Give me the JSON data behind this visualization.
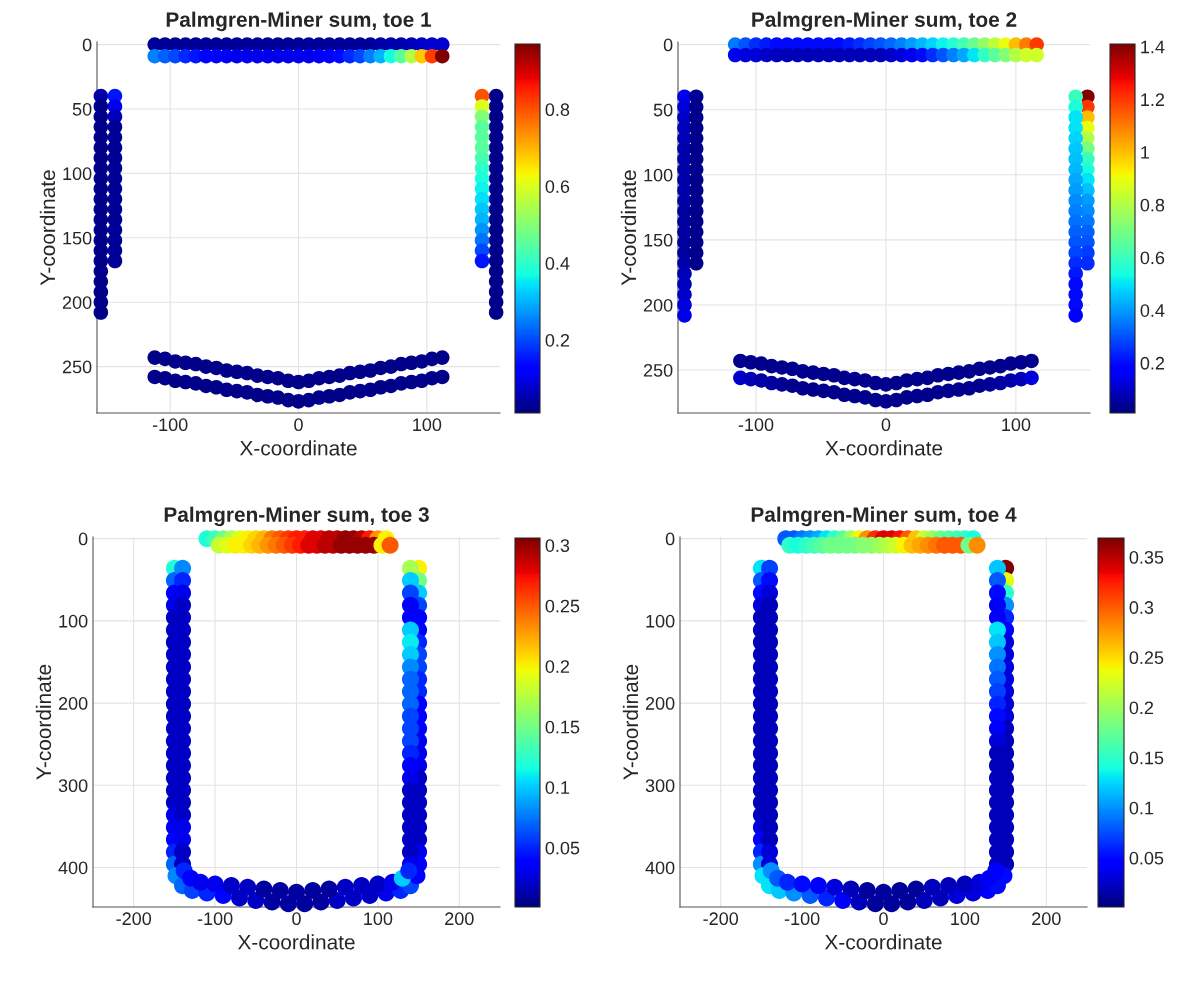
{
  "chart_data": [
    {
      "type": "scatter",
      "title": "Palmgren-Miner sum, toe 1",
      "xlabel": "X-coordinate",
      "ylabel": "Y-coordinate",
      "xlim": [
        -157,
        157
      ],
      "ylim": [
        286,
        -2
      ],
      "xticks": [
        -100,
        0,
        100
      ],
      "yticks": [
        0,
        50,
        100,
        150,
        200,
        250
      ],
      "clim": [
        0.01,
        0.97
      ],
      "cticks": [
        0.2,
        0.4,
        0.6,
        0.8
      ],
      "grid": true,
      "marker": "circle",
      "x": [
        -112,
        -104,
        -96,
        -88,
        -80,
        -72,
        -64,
        -56,
        -48,
        -40,
        -32,
        -24,
        -16,
        -8,
        0,
        8,
        16,
        24,
        32,
        40,
        48,
        56,
        64,
        72,
        80,
        88,
        96,
        104,
        112,
        -112,
        -104,
        -96,
        -88,
        -80,
        -72,
        -64,
        -56,
        -48,
        -40,
        -32,
        -24,
        -16,
        -8,
        0,
        8,
        16,
        24,
        32,
        40,
        48,
        56,
        64,
        72,
        80,
        88,
        96,
        104,
        112,
        -154,
        -154,
        -154,
        -154,
        -154,
        -154,
        -154,
        -154,
        -154,
        -154,
        -154,
        -154,
        -154,
        -154,
        -154,
        -154,
        -154,
        -154,
        -154,
        -154,
        -154,
        -154,
        -143,
        -143,
        -143,
        -143,
        -143,
        -143,
        -143,
        -143,
        -143,
        -143,
        -143,
        -143,
        -143,
        -143,
        -143,
        -143,
        -143,
        154,
        154,
        154,
        154,
        154,
        154,
        154,
        154,
        154,
        154,
        154,
        154,
        154,
        154,
        154,
        154,
        154,
        154,
        154,
        154,
        154,
        154,
        143,
        143,
        143,
        143,
        143,
        143,
        143,
        143,
        143,
        143,
        143,
        143,
        143,
        143,
        143,
        143,
        143,
        -112,
        -104,
        -96,
        -88,
        -80,
        -72,
        -64,
        -56,
        -48,
        -40,
        -32,
        -24,
        -16,
        -8,
        0,
        8,
        16,
        24,
        32,
        40,
        48,
        56,
        64,
        72,
        80,
        88,
        96,
        104,
        112,
        -112,
        -104,
        -96,
        -88,
        -80,
        -72,
        -64,
        -56,
        -48,
        -40,
        -32,
        -24,
        -16,
        -8,
        0,
        8,
        16,
        24,
        32,
        40,
        48,
        56,
        64,
        72,
        80,
        88,
        96,
        104,
        112
      ],
      "values": [
        0,
        0,
        0,
        0,
        0,
        0,
        0,
        0,
        0,
        0,
        0,
        0,
        0,
        0,
        0,
        0,
        0,
        0,
        0,
        0,
        0,
        0,
        0,
        0,
        0,
        0,
        0,
        0,
        0,
        9,
        9,
        9,
        9,
        9,
        9,
        9,
        9,
        9,
        9,
        9,
        9,
        9,
        9,
        9,
        9,
        9,
        9,
        9,
        9,
        9,
        9,
        9,
        9,
        9,
        9,
        9,
        9,
        9,
        40,
        48,
        56,
        64,
        72,
        80,
        88,
        96,
        104,
        112,
        120,
        128,
        136,
        144,
        152,
        160,
        168,
        176,
        184,
        192,
        200,
        208,
        40,
        48,
        56,
        64,
        72,
        80,
        88,
        96,
        104,
        112,
        120,
        128,
        136,
        144,
        152,
        160,
        168,
        40,
        48,
        56,
        64,
        72,
        80,
        88,
        96,
        104,
        112,
        120,
        128,
        136,
        144,
        152,
        160,
        168,
        176,
        184,
        192,
        200,
        208,
        40,
        48,
        56,
        64,
        72,
        80,
        88,
        96,
        104,
        112,
        120,
        128,
        136,
        144,
        152,
        160,
        168,
        243,
        244,
        246,
        247,
        248,
        250,
        251,
        253,
        254,
        255,
        257,
        258,
        259,
        261,
        262,
        261,
        259,
        258,
        257,
        255,
        254,
        253,
        251,
        250,
        248,
        247,
        246,
        244,
        243,
        258,
        259,
        261,
        262,
        263,
        265,
        266,
        268,
        269,
        270,
        272,
        273,
        274,
        276,
        277,
        276,
        274,
        273,
        272,
        270,
        269,
        268,
        266,
        265,
        263,
        262,
        261,
        259,
        258
      ],
      "cvalues": [
        0.03,
        0.03,
        0.03,
        0.03,
        0.03,
        0.03,
        0.03,
        0.03,
        0.03,
        0.03,
        0.03,
        0.03,
        0.03,
        0.03,
        0.03,
        0.03,
        0.03,
        0.03,
        0.03,
        0.03,
        0.03,
        0.03,
        0.04,
        0.05,
        0.05,
        0.06,
        0.07,
        0.08,
        0.08,
        0.25,
        0.22,
        0.2,
        0.17,
        0.15,
        0.13,
        0.12,
        0.11,
        0.1,
        0.1,
        0.1,
        0.1,
        0.1,
        0.1,
        0.1,
        0.1,
        0.11,
        0.12,
        0.14,
        0.17,
        0.2,
        0.25,
        0.3,
        0.37,
        0.45,
        0.55,
        0.68,
        0.82,
        0.97,
        0.04,
        0.02,
        0.02,
        0.02,
        0.02,
        0.02,
        0.02,
        0.02,
        0.02,
        0.02,
        0.02,
        0.02,
        0.02,
        0.02,
        0.02,
        0.02,
        0.02,
        0.02,
        0.02,
        0.02,
        0.02,
        0.02,
        0.15,
        0.1,
        0.06,
        0.03,
        0.03,
        0.03,
        0.03,
        0.03,
        0.03,
        0.03,
        0.03,
        0.03,
        0.03,
        0.03,
        0.03,
        0.03,
        0.03,
        0.02,
        0.02,
        0.02,
        0.02,
        0.02,
        0.02,
        0.02,
        0.02,
        0.02,
        0.02,
        0.02,
        0.02,
        0.02,
        0.02,
        0.02,
        0.02,
        0.02,
        0.02,
        0.02,
        0.02,
        0.02,
        0.02,
        0.8,
        0.6,
        0.5,
        0.45,
        0.45,
        0.45,
        0.43,
        0.4,
        0.38,
        0.36,
        0.34,
        0.32,
        0.3,
        0.27,
        0.24,
        0.2,
        0.15,
        0.02,
        0.02,
        0.02,
        0.02,
        0.02,
        0.02,
        0.02,
        0.02,
        0.02,
        0.02,
        0.02,
        0.02,
        0.02,
        0.02,
        0.02,
        0.02,
        0.02,
        0.02,
        0.02,
        0.02,
        0.02,
        0.02,
        0.02,
        0.02,
        0.02,
        0.02,
        0.02,
        0.02,
        0.02,
        0.02,
        0.02,
        0.02,
        0.02,
        0.02,
        0.02,
        0.02,
        0.02,
        0.02,
        0.02,
        0.02,
        0.02,
        0.02,
        0.02,
        0.02,
        0.02,
        0.02,
        0.02,
        0.02,
        0.02,
        0.02,
        0.02,
        0.02,
        0.02,
        0.02,
        0.02,
        0.02,
        0.02,
        0.02
      ]
    },
    {
      "type": "scatter",
      "title": "Palmgren-Miner sum, toe 2",
      "xlabel": "X-coordinate",
      "ylabel": "Y-coordinate",
      "xlim": [
        -160,
        157
      ],
      "ylim": [
        283,
        -2
      ],
      "xticks": [
        -100,
        0,
        100
      ],
      "yticks": [
        0,
        50,
        100,
        150,
        200,
        250
      ],
      "clim": [
        0.01,
        1.41
      ],
      "cticks": [
        0.2,
        0.4,
        0.6,
        0.8,
        1,
        1.2,
        1.4
      ],
      "grid": true,
      "marker": "circle",
      "x": [
        -116,
        -108,
        -100,
        -92,
        -84,
        -76,
        -68,
        -60,
        -52,
        -44,
        -36,
        -28,
        -20,
        -12,
        -4,
        4,
        12,
        20,
        28,
        36,
        44,
        52,
        60,
        68,
        76,
        84,
        92,
        100,
        108,
        116,
        -116,
        -108,
        -100,
        -92,
        -84,
        -76,
        -68,
        -60,
        -52,
        -44,
        -36,
        -28,
        -20,
        -12,
        -4,
        4,
        12,
        20,
        28,
        36,
        44,
        52,
        60,
        68,
        76,
        84,
        92,
        100,
        108,
        116,
        -155,
        -155,
        -155,
        -155,
        -155,
        -155,
        -155,
        -155,
        -155,
        -155,
        -155,
        -155,
        -155,
        -155,
        -155,
        -155,
        -155,
        -155,
        -155,
        -155,
        -155,
        -155,
        -146,
        -146,
        -146,
        -146,
        -146,
        -146,
        -146,
        -146,
        -146,
        -146,
        -146,
        -146,
        -146,
        -146,
        -146,
        -146,
        -146,
        155,
        155,
        155,
        155,
        155,
        155,
        155,
        155,
        155,
        155,
        155,
        155,
        155,
        155,
        155,
        155,
        155,
        146,
        146,
        146,
        146,
        146,
        146,
        146,
        146,
        146,
        146,
        146,
        146,
        146,
        146,
        146,
        146,
        146,
        146,
        146,
        146,
        146,
        146,
        -112,
        -104,
        -96,
        -88,
        -80,
        -72,
        -64,
        -56,
        -48,
        -40,
        -32,
        -24,
        -16,
        -8,
        0,
        8,
        16,
        24,
        32,
        40,
        48,
        56,
        64,
        72,
        80,
        88,
        96,
        104,
        112,
        -112,
        -104,
        -96,
        -88,
        -80,
        -72,
        -64,
        -56,
        -48,
        -40,
        -32,
        -24,
        -16,
        -8,
        0,
        8,
        16,
        24,
        32,
        40,
        48,
        56,
        64,
        72,
        80,
        88,
        96,
        104,
        112
      ],
      "values": [
        0,
        0,
        0,
        0,
        0,
        0,
        0,
        0,
        0,
        0,
        0,
        0,
        0,
        0,
        0,
        0,
        0,
        0,
        0,
        0,
        0,
        0,
        0,
        0,
        0,
        0,
        0,
        0,
        0,
        0,
        8,
        8,
        8,
        8,
        8,
        8,
        8,
        8,
        8,
        8,
        8,
        8,
        8,
        8,
        8,
        8,
        8,
        8,
        8,
        8,
        8,
        8,
        8,
        8,
        8,
        8,
        8,
        8,
        8,
        8,
        40,
        48,
        56,
        64,
        72,
        80,
        88,
        96,
        104,
        112,
        120,
        128,
        136,
        144,
        152,
        160,
        168,
        176,
        184,
        192,
        200,
        208,
        40,
        48,
        56,
        64,
        72,
        80,
        88,
        96,
        104,
        112,
        120,
        128,
        136,
        144,
        152,
        160,
        168,
        40,
        48,
        56,
        64,
        72,
        80,
        88,
        96,
        104,
        112,
        120,
        128,
        136,
        144,
        152,
        160,
        168,
        40,
        48,
        56,
        64,
        72,
        80,
        88,
        96,
        104,
        112,
        120,
        128,
        136,
        144,
        152,
        160,
        168,
        176,
        184,
        192,
        200,
        208,
        243,
        244,
        245,
        247,
        248,
        249,
        251,
        252,
        253,
        254,
        256,
        257,
        258,
        260,
        261,
        260,
        258,
        257,
        256,
        254,
        253,
        252,
        251,
        249,
        248,
        247,
        245,
        244,
        243,
        256,
        257,
        258,
        260,
        261,
        262,
        264,
        265,
        266,
        267,
        269,
        270,
        271,
        273,
        274,
        273,
        271,
        270,
        269,
        267,
        266,
        265,
        264,
        262,
        261,
        260,
        258,
        257,
        256
      ],
      "cvalues": [
        0.35,
        0.3,
        0.25,
        0.22,
        0.2,
        0.2,
        0.2,
        0.2,
        0.2,
        0.2,
        0.2,
        0.22,
        0.25,
        0.28,
        0.3,
        0.33,
        0.36,
        0.4,
        0.44,
        0.48,
        0.52,
        0.56,
        0.62,
        0.68,
        0.75,
        0.82,
        0.9,
        1.0,
        1.1,
        1.2,
        0.15,
        0.13,
        0.12,
        0.1,
        0.09,
        0.08,
        0.08,
        0.08,
        0.08,
        0.08,
        0.08,
        0.08,
        0.08,
        0.08,
        0.08,
        0.1,
        0.12,
        0.15,
        0.2,
        0.25,
        0.3,
        0.36,
        0.42,
        0.5,
        0.58,
        0.65,
        0.72,
        0.8,
        0.85,
        0.85,
        0.15,
        0.12,
        0.1,
        0.09,
        0.08,
        0.07,
        0.07,
        0.06,
        0.06,
        0.06,
        0.06,
        0.05,
        0.05,
        0.05,
        0.05,
        0.05,
        0.06,
        0.08,
        0.09,
        0.1,
        0.12,
        0.14,
        0.04,
        0.03,
        0.03,
        0.03,
        0.03,
        0.03,
        0.03,
        0.03,
        0.03,
        0.03,
        0.03,
        0.03,
        0.03,
        0.03,
        0.03,
        0.03,
        0.03,
        1.4,
        1.2,
        1.0,
        0.9,
        0.8,
        0.7,
        0.6,
        0.55,
        0.5,
        0.45,
        0.4,
        0.38,
        0.35,
        0.32,
        0.3,
        0.27,
        0.25,
        0.6,
        0.55,
        0.5,
        0.5,
        0.48,
        0.46,
        0.45,
        0.44,
        0.42,
        0.4,
        0.38,
        0.36,
        0.34,
        0.32,
        0.3,
        0.28,
        0.25,
        0.22,
        0.2,
        0.2,
        0.2,
        0.18,
        0.03,
        0.03,
        0.03,
        0.03,
        0.03,
        0.03,
        0.03,
        0.03,
        0.03,
        0.03,
        0.03,
        0.03,
        0.03,
        0.03,
        0.03,
        0.03,
        0.03,
        0.03,
        0.03,
        0.03,
        0.03,
        0.03,
        0.03,
        0.03,
        0.03,
        0.03,
        0.03,
        0.03,
        0.03,
        0.1,
        0.08,
        0.06,
        0.05,
        0.04,
        0.03,
        0.03,
        0.03,
        0.03,
        0.03,
        0.03,
        0.03,
        0.03,
        0.03,
        0.03,
        0.03,
        0.03,
        0.03,
        0.03,
        0.03,
        0.03,
        0.03,
        0.03,
        0.03,
        0.04,
        0.05,
        0.06,
        0.08,
        0.12
      ]
    },
    {
      "type": "scatter",
      "title": "Palmgren-Miner sum, toe 3",
      "xlabel": "X-coordinate",
      "ylabel": "Y-coordinate",
      "xlim": [
        -250,
        250
      ],
      "ylim": [
        448,
        -2
      ],
      "xticks": [
        -200,
        -100,
        0,
        100,
        200
      ],
      "yticks": [
        0,
        100,
        200,
        300,
        400
      ],
      "clim": [
        0.001,
        0.306
      ],
      "cticks": [
        0.05,
        0.1,
        0.15,
        0.2,
        0.25,
        0.3
      ],
      "grid": true,
      "marker": "circle",
      "x": [
        -150,
        -150,
        -150,
        -150,
        -150,
        -150,
        -150,
        -150,
        -150,
        -150,
        -150,
        -150,
        -150,
        -150,
        -150,
        -150,
        -150,
        -150,
        -150,
        -150,
        -150,
        -150,
        -150,
        -150,
        -150,
        -140,
        -140,
        -140,
        -140,
        -140,
        -140,
        -140,
        -140,
        -140,
        -140,
        -140,
        -140,
        -140,
        -140,
        -140,
        -140,
        -140,
        -140,
        -140,
        -140,
        -140,
        -140,
        -140,
        -140,
        -140,
        150,
        150,
        150,
        150,
        150,
        150,
        150,
        150,
        150,
        150,
        150,
        150,
        150,
        150,
        150,
        150,
        150,
        150,
        150,
        150,
        150,
        150,
        150,
        150,
        150,
        140,
        140,
        140,
        140,
        140,
        140,
        140,
        140,
        140,
        140,
        140,
        140,
        140,
        140,
        140,
        140,
        140,
        140,
        140,
        140,
        140,
        140,
        140,
        140,
        140,
        -148,
        -140,
        -128,
        -110,
        -90,
        -70,
        -50,
        -30,
        -10,
        10,
        30,
        50,
        70,
        90,
        110,
        128,
        140,
        148,
        -138,
        -130,
        -118,
        -100,
        -80,
        -60,
        -40,
        -20,
        0,
        20,
        40,
        60,
        80,
        100,
        118,
        130,
        138,
        -110,
        -100,
        -90,
        -80,
        -70,
        -60,
        -50,
        -40,
        -30,
        -20,
        -10,
        0,
        10,
        20,
        30,
        40,
        50,
        60,
        70,
        80,
        90,
        100,
        110,
        -95,
        -85,
        -75,
        -65,
        -55,
        -45,
        -35,
        -25,
        -15,
        -5,
        5,
        15,
        25,
        35,
        45,
        55,
        65,
        75,
        85,
        95,
        105,
        115
      ],
      "values": [
        36,
        51,
        66,
        81,
        96,
        111,
        126,
        141,
        156,
        171,
        186,
        201,
        216,
        231,
        246,
        261,
        276,
        291,
        306,
        321,
        336,
        351,
        366,
        381,
        396,
        36,
        51,
        66,
        81,
        96,
        111,
        126,
        141,
        156,
        171,
        186,
        201,
        216,
        231,
        246,
        261,
        276,
        291,
        306,
        321,
        336,
        351,
        366,
        381,
        396,
        36,
        51,
        66,
        81,
        96,
        111,
        126,
        141,
        156,
        171,
        186,
        201,
        216,
        231,
        246,
        261,
        276,
        291,
        306,
        321,
        336,
        351,
        366,
        381,
        396,
        36,
        51,
        66,
        81,
        96,
        111,
        126,
        141,
        156,
        171,
        186,
        201,
        216,
        231,
        246,
        261,
        276,
        291,
        306,
        321,
        336,
        351,
        366,
        381,
        396,
        410,
        422,
        428,
        431,
        434,
        437,
        440,
        442,
        444,
        444,
        442,
        440,
        437,
        434,
        431,
        428,
        422,
        410,
        404,
        413,
        418,
        420,
        422,
        424,
        426,
        428,
        430,
        428,
        426,
        424,
        422,
        420,
        418,
        413,
        404,
        0,
        0,
        0,
        0,
        0,
        0,
        0,
        0,
        0,
        0,
        0,
        0,
        0,
        0,
        0,
        0,
        0,
        0,
        0,
        0,
        0,
        0,
        0,
        8,
        8,
        8,
        8,
        8,
        8,
        8,
        8,
        8,
        8,
        8,
        8,
        8,
        8,
        8,
        8,
        8,
        8,
        8,
        8,
        8,
        8
      ],
      "cvalues": [
        0.12,
        0.07,
        0.04,
        0.03,
        0.02,
        0.02,
        0.02,
        0.02,
        0.02,
        0.02,
        0.02,
        0.02,
        0.02,
        0.02,
        0.02,
        0.02,
        0.02,
        0.02,
        0.02,
        0.02,
        0.03,
        0.03,
        0.04,
        0.05,
        0.07,
        0.08,
        0.05,
        0.03,
        0.02,
        0.02,
        0.02,
        0.02,
        0.02,
        0.02,
        0.02,
        0.02,
        0.02,
        0.02,
        0.02,
        0.02,
        0.02,
        0.02,
        0.02,
        0.02,
        0.02,
        0.02,
        0.03,
        0.03,
        0.02,
        0.02,
        0.2,
        0.15,
        0.1,
        0.06,
        0.04,
        0.04,
        0.05,
        0.06,
        0.06,
        0.05,
        0.05,
        0.04,
        0.04,
        0.04,
        0.03,
        0.03,
        0.03,
        0.02,
        0.02,
        0.02,
        0.02,
        0.02,
        0.02,
        0.03,
        0.04,
        0.17,
        0.1,
        0.06,
        0.04,
        0.04,
        0.1,
        0.11,
        0.1,
        0.08,
        0.07,
        0.07,
        0.07,
        0.06,
        0.06,
        0.06,
        0.05,
        0.04,
        0.03,
        0.02,
        0.02,
        0.02,
        0.02,
        0.02,
        0.02,
        0.03,
        0.08,
        0.07,
        0.06,
        0.05,
        0.04,
        0.02,
        0.02,
        0.01,
        0.01,
        0.01,
        0.01,
        0.02,
        0.02,
        0.02,
        0.03,
        0.05,
        0.06,
        0.04,
        0.05,
        0.04,
        0.03,
        0.03,
        0.02,
        0.02,
        0.01,
        0.01,
        0.01,
        0.01,
        0.01,
        0.02,
        0.02,
        0.02,
        0.03,
        0.1,
        0.05,
        0.12,
        0.13,
        0.15,
        0.17,
        0.19,
        0.2,
        0.21,
        0.22,
        0.24,
        0.25,
        0.26,
        0.27,
        0.27,
        0.28,
        0.28,
        0.29,
        0.29,
        0.3,
        0.3,
        0.29,
        0.27,
        0.23,
        0.2,
        0.18,
        0.19,
        0.2,
        0.2,
        0.21,
        0.22,
        0.23,
        0.24,
        0.25,
        0.26,
        0.27,
        0.28,
        0.28,
        0.29,
        0.29,
        0.3,
        0.3,
        0.3,
        0.3,
        0.3,
        0.2,
        0.25
      ]
    },
    {
      "type": "scatter",
      "title": "Palmgren-Miner sum, toe 4",
      "xlabel": "X-coordinate",
      "ylabel": "Y-coordinate",
      "xlim": [
        -250,
        250
      ],
      "ylim": [
        448,
        -2
      ],
      "xticks": [
        -200,
        -100,
        0,
        100,
        200
      ],
      "yticks": [
        0,
        100,
        200,
        300,
        400
      ],
      "clim": [
        0.001,
        0.369
      ],
      "cticks": [
        0.05,
        0.1,
        0.15,
        0.2,
        0.25,
        0.3,
        0.35
      ],
      "grid": true,
      "marker": "circle",
      "x": [
        -150,
        -150,
        -150,
        -150,
        -150,
        -150,
        -150,
        -150,
        -150,
        -150,
        -150,
        -150,
        -150,
        -150,
        -150,
        -150,
        -150,
        -150,
        -150,
        -150,
        -150,
        -150,
        -150,
        -150,
        -150,
        -140,
        -140,
        -140,
        -140,
        -140,
        -140,
        -140,
        -140,
        -140,
        -140,
        -140,
        -140,
        -140,
        -140,
        -140,
        -140,
        -140,
        -140,
        -140,
        -140,
        -140,
        -140,
        -140,
        -140,
        -140,
        150,
        150,
        150,
        150,
        150,
        150,
        150,
        150,
        150,
        150,
        150,
        150,
        150,
        150,
        150,
        150,
        150,
        150,
        150,
        150,
        150,
        150,
        150,
        150,
        150,
        140,
        140,
        140,
        140,
        140,
        140,
        140,
        140,
        140,
        140,
        140,
        140,
        140,
        140,
        140,
        140,
        140,
        140,
        140,
        140,
        140,
        140,
        140,
        140,
        140,
        -148,
        -140,
        -128,
        -110,
        -90,
        -70,
        -50,
        -30,
        -10,
        10,
        30,
        50,
        70,
        90,
        110,
        128,
        140,
        148,
        -138,
        -130,
        -118,
        -100,
        -80,
        -60,
        -40,
        -20,
        0,
        20,
        40,
        60,
        80,
        100,
        118,
        130,
        138,
        -120,
        -110,
        -100,
        -90,
        -80,
        -70,
        -60,
        -50,
        -40,
        -30,
        -20,
        -10,
        0,
        10,
        20,
        30,
        40,
        50,
        60,
        70,
        80,
        90,
        100,
        110,
        -115,
        -105,
        -95,
        -85,
        -75,
        -65,
        -55,
        -45,
        -35,
        -25,
        -15,
        -5,
        5,
        15,
        25,
        35,
        45,
        55,
        65,
        75,
        85,
        95,
        105,
        115
      ],
      "values": [
        36,
        51,
        66,
        81,
        96,
        111,
        126,
        141,
        156,
        171,
        186,
        201,
        216,
        231,
        246,
        261,
        276,
        291,
        306,
        321,
        336,
        351,
        366,
        381,
        396,
        36,
        51,
        66,
        81,
        96,
        111,
        126,
        141,
        156,
        171,
        186,
        201,
        216,
        231,
        246,
        261,
        276,
        291,
        306,
        321,
        336,
        351,
        366,
        381,
        396,
        36,
        51,
        66,
        81,
        96,
        111,
        126,
        141,
        156,
        171,
        186,
        201,
        216,
        231,
        246,
        261,
        276,
        291,
        306,
        321,
        336,
        351,
        366,
        381,
        396,
        36,
        51,
        66,
        81,
        96,
        111,
        126,
        141,
        156,
        171,
        186,
        201,
        216,
        231,
        246,
        261,
        276,
        291,
        306,
        321,
        336,
        351,
        366,
        381,
        396,
        410,
        422,
        428,
        431,
        434,
        437,
        440,
        442,
        444,
        444,
        442,
        440,
        437,
        434,
        431,
        428,
        422,
        410,
        404,
        413,
        418,
        420,
        422,
        424,
        426,
        428,
        430,
        428,
        426,
        424,
        422,
        420,
        418,
        413,
        404,
        0,
        0,
        0,
        0,
        0,
        0,
        0,
        0,
        0,
        0,
        0,
        0,
        0,
        0,
        0,
        0,
        0,
        0,
        0,
        0,
        0,
        0,
        0,
        0,
        8,
        8,
        8,
        8,
        8,
        8,
        8,
        8,
        8,
        8,
        8,
        8,
        8,
        8,
        8,
        8,
        8,
        8,
        8,
        8,
        8,
        8,
        8,
        8
      ],
      "cvalues": [
        0.13,
        0.08,
        0.05,
        0.03,
        0.02,
        0.02,
        0.02,
        0.02,
        0.02,
        0.02,
        0.02,
        0.02,
        0.02,
        0.02,
        0.02,
        0.02,
        0.02,
        0.02,
        0.02,
        0.02,
        0.02,
        0.03,
        0.04,
        0.06,
        0.1,
        0.07,
        0.05,
        0.03,
        0.02,
        0.02,
        0.02,
        0.02,
        0.02,
        0.02,
        0.02,
        0.02,
        0.02,
        0.02,
        0.02,
        0.02,
        0.02,
        0.02,
        0.02,
        0.02,
        0.02,
        0.02,
        0.02,
        0.02,
        0.03,
        0.03,
        0.37,
        0.23,
        0.15,
        0.1,
        0.06,
        0.04,
        0.03,
        0.03,
        0.03,
        0.03,
        0.03,
        0.03,
        0.03,
        0.02,
        0.02,
        0.02,
        0.02,
        0.02,
        0.02,
        0.02,
        0.02,
        0.02,
        0.02,
        0.02,
        0.02,
        0.12,
        0.08,
        0.05,
        0.04,
        0.04,
        0.13,
        0.12,
        0.1,
        0.09,
        0.08,
        0.07,
        0.06,
        0.05,
        0.04,
        0.03,
        0.02,
        0.02,
        0.02,
        0.02,
        0.02,
        0.02,
        0.02,
        0.02,
        0.02,
        0.02,
        0.13,
        0.13,
        0.12,
        0.1,
        0.08,
        0.06,
        0.04,
        0.02,
        0.01,
        0.01,
        0.01,
        0.02,
        0.02,
        0.03,
        0.03,
        0.04,
        0.05,
        0.05,
        0.1,
        0.08,
        0.06,
        0.05,
        0.04,
        0.03,
        0.02,
        0.01,
        0.01,
        0.01,
        0.01,
        0.02,
        0.02,
        0.02,
        0.03,
        0.04,
        0.04,
        0.08,
        0.08,
        0.09,
        0.1,
        0.11,
        0.13,
        0.15,
        0.17,
        0.2,
        0.24,
        0.28,
        0.32,
        0.34,
        0.34,
        0.33,
        0.3,
        0.26,
        0.22,
        0.2,
        0.18,
        0.17,
        0.16,
        0.15,
        0.14,
        0.15,
        0.14,
        0.15,
        0.16,
        0.17,
        0.18,
        0.18,
        0.18,
        0.18,
        0.19,
        0.19,
        0.2,
        0.21,
        0.22,
        0.24,
        0.26,
        0.27,
        0.28,
        0.29,
        0.3,
        0.3,
        0.3,
        0.18,
        0.28
      ]
    }
  ]
}
